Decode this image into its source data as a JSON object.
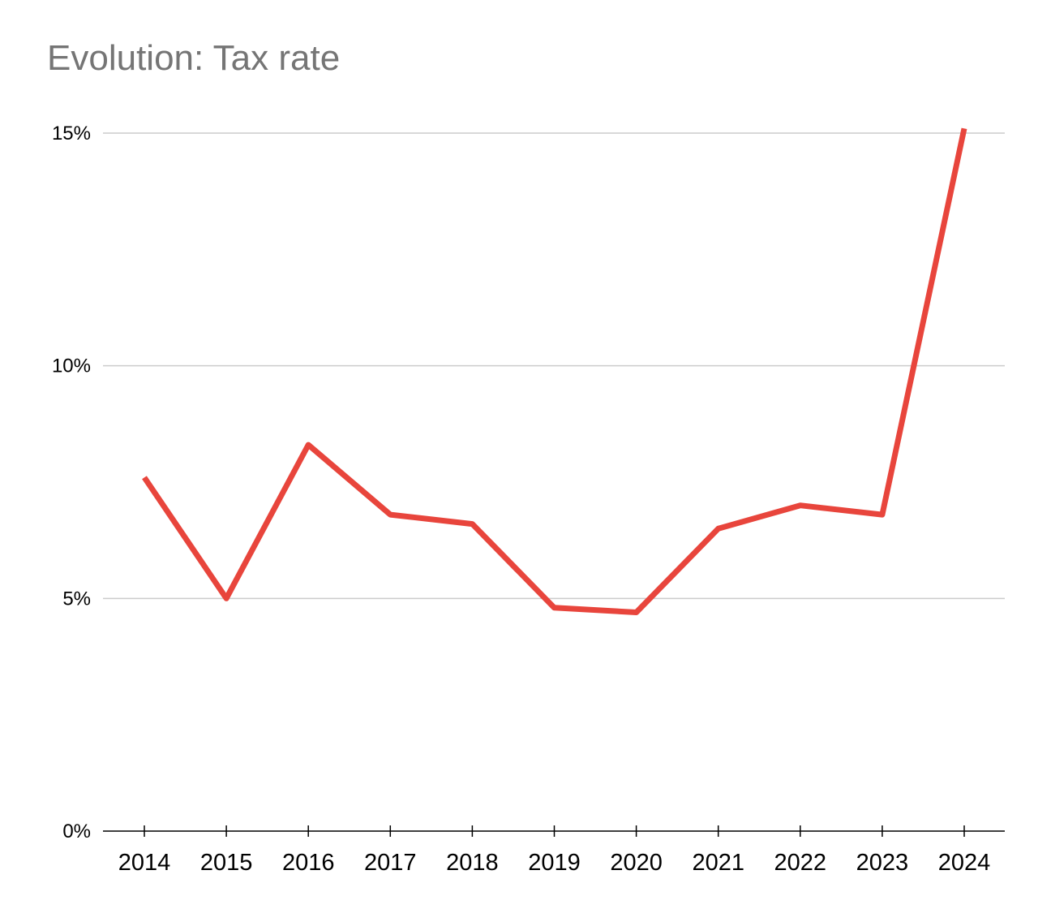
{
  "colors": {
    "line": "#e8453c",
    "grid": "#cccccc",
    "axis": "#000000",
    "title": "#757575"
  },
  "chart_data": {
    "type": "line",
    "title": "Evolution: Tax rate",
    "xlabel": "",
    "ylabel": "",
    "x": [
      "2014",
      "2015",
      "2016",
      "2017",
      "2018",
      "2019",
      "2020",
      "2021",
      "2022",
      "2023",
      "2024"
    ],
    "series": [
      {
        "values": [
          7.6,
          5.0,
          8.3,
          6.8,
          6.6,
          4.8,
          4.7,
          6.5,
          7.0,
          6.8,
          15.1
        ]
      }
    ],
    "ylim": [
      0,
      15
    ],
    "yticks": [
      0,
      5,
      10,
      15
    ],
    "ytick_labels": [
      "0%",
      "5%",
      "10%",
      "15%"
    ],
    "grid": true,
    "legend": "none"
  }
}
